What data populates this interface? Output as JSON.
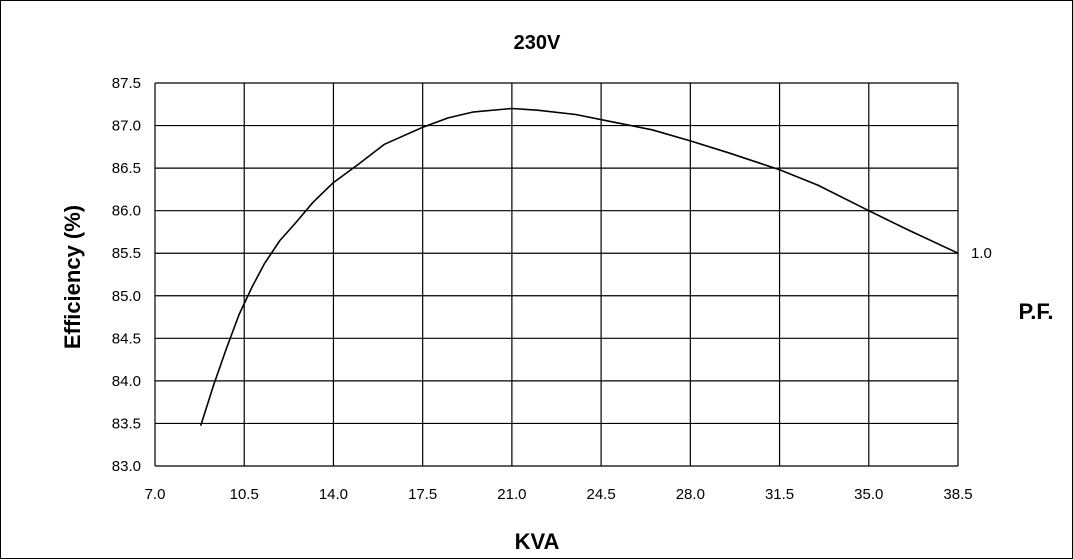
{
  "chart_data": {
    "type": "line",
    "title": "230V",
    "xlabel": "KVA",
    "ylabel": "Efficiency (%)",
    "right_label": "P.F.",
    "xlim": [
      7.0,
      38.5
    ],
    "ylim": [
      83.0,
      87.5
    ],
    "xticks": [
      "7.0",
      "10.5",
      "14.0",
      "17.5",
      "21.0",
      "24.5",
      "28.0",
      "31.5",
      "35.0",
      "38.5"
    ],
    "yticks": [
      "83.0",
      "83.5",
      "84.0",
      "84.5",
      "85.0",
      "85.5",
      "86.0",
      "86.5",
      "87.0",
      "87.5"
    ],
    "grid": true,
    "series": [
      {
        "name": "1.0",
        "color": "#000000",
        "x": [
          8.8,
          9.3,
          9.8,
          10.3,
          10.8,
          11.3,
          11.9,
          12.5,
          13.2,
          14.0,
          15.0,
          16.0,
          17.5,
          18.5,
          19.5,
          21.0,
          22.0,
          23.5,
          25.0,
          26.5,
          28.0,
          29.5,
          31.5,
          33.0,
          35.0,
          36.5,
          38.5
        ],
        "y": [
          83.48,
          83.95,
          84.38,
          84.78,
          85.1,
          85.38,
          85.65,
          85.85,
          86.1,
          86.33,
          86.55,
          86.78,
          86.98,
          87.09,
          87.16,
          87.2,
          87.18,
          87.13,
          87.04,
          86.95,
          86.82,
          86.68,
          86.48,
          86.3,
          86.0,
          85.78,
          85.5
        ]
      }
    ]
  }
}
